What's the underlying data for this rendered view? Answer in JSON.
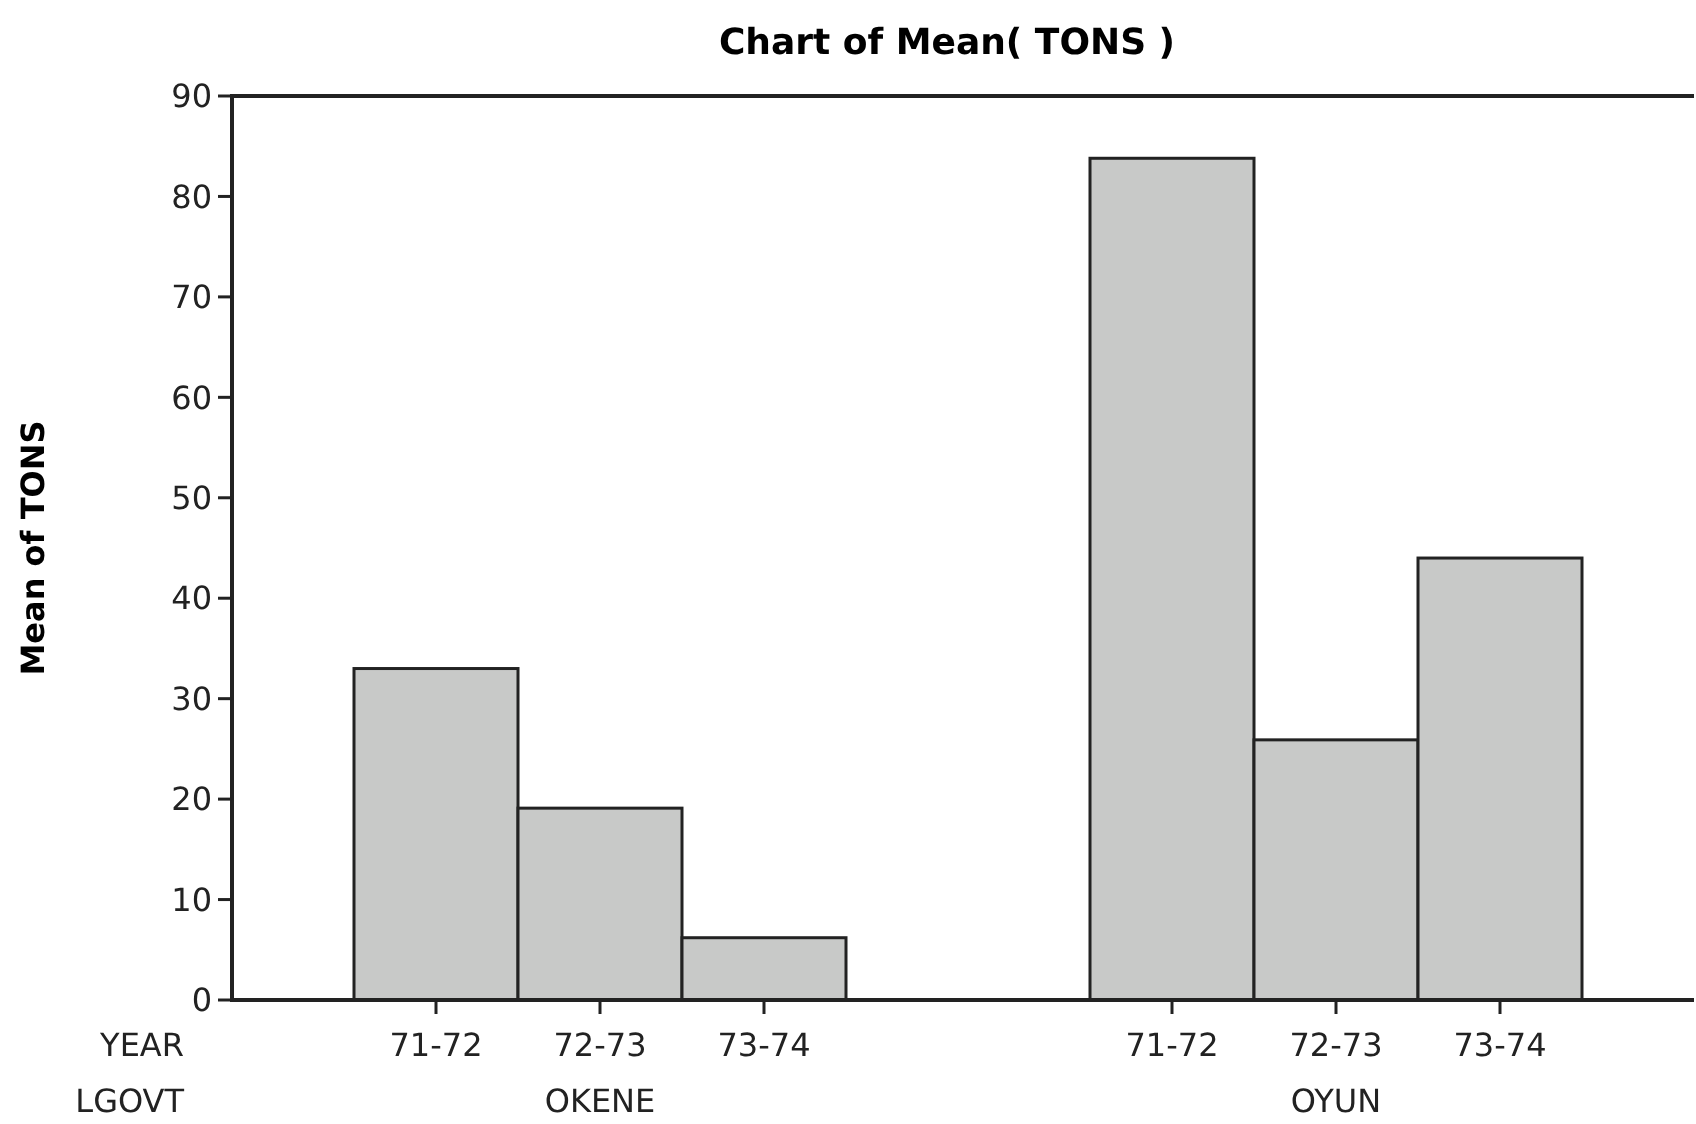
{
  "chart_data": {
    "type": "bar",
    "title": "Chart of Mean( TONS )",
    "ylabel": "Mean of TONS",
    "categories": [
      "71-72",
      "72-73",
      "73-74",
      "71-72",
      "72-73",
      "73-74"
    ],
    "values": [
      33.0,
      19.1,
      6.2,
      83.8,
      25.9,
      44.0
    ],
    "color": "#c8c9c8",
    "ylim": [
      0,
      90
    ],
    "yticks": [
      0,
      10,
      20,
      30,
      40,
      50,
      60,
      70,
      80,
      90
    ],
    "annotations": [
      "YEAR",
      "LGOVT",
      "OKENE",
      "OYUN"
    ]
  }
}
